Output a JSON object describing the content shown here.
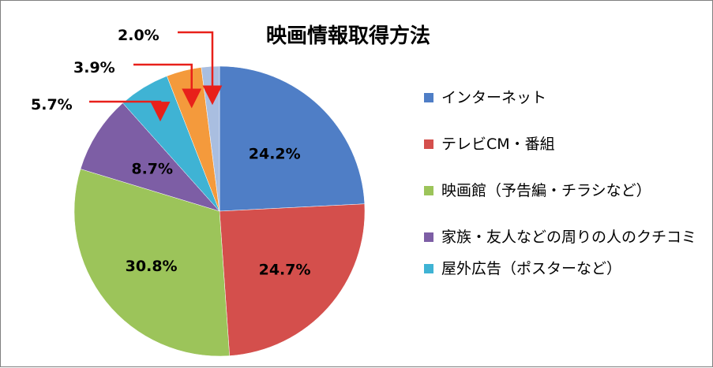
{
  "title": "映画情報取得方法",
  "chart_data": {
    "type": "pie",
    "title": "映画情報取得方法",
    "slices": [
      {
        "name": "インターネット",
        "value": 24.2,
        "label": "24.2%",
        "color": "#4f7ec6"
      },
      {
        "name": "テレビCM・番組",
        "value": 24.7,
        "label": "24.7%",
        "color": "#d44f4c"
      },
      {
        "name": "映画館（予告編・チラシなど）",
        "value": 30.8,
        "label": "30.8%",
        "color": "#9cc45a"
      },
      {
        "name": "家族・友人などの周りの人のクチコミ",
        "value": 8.7,
        "label": "8.7%",
        "color": "#7d5ea5"
      },
      {
        "name": "屋外広告（ポスターなど）",
        "value": 5.7,
        "label": "5.7%",
        "color": "#3fb3d4"
      },
      {
        "name": "",
        "value": 3.9,
        "label": "3.9%",
        "color": "#f49a3c"
      },
      {
        "name": "",
        "value": 2.0,
        "label": "2.0%",
        "color": "#a9bee0"
      }
    ],
    "legend_placement": "right"
  },
  "legend": [
    {
      "label": "インターネット",
      "color": "#4f7ec6"
    },
    {
      "label": "テレビCM・番組",
      "color": "#d44f4c"
    },
    {
      "label": "映画館（予告編・チラシなど）",
      "color": "#9cc45a"
    },
    {
      "label": "家族・友人などの周りの人のクチコミ",
      "color": "#7d5ea5"
    },
    {
      "label": "屋外広告（ポスターなど）",
      "color": "#3fb3d4"
    }
  ]
}
